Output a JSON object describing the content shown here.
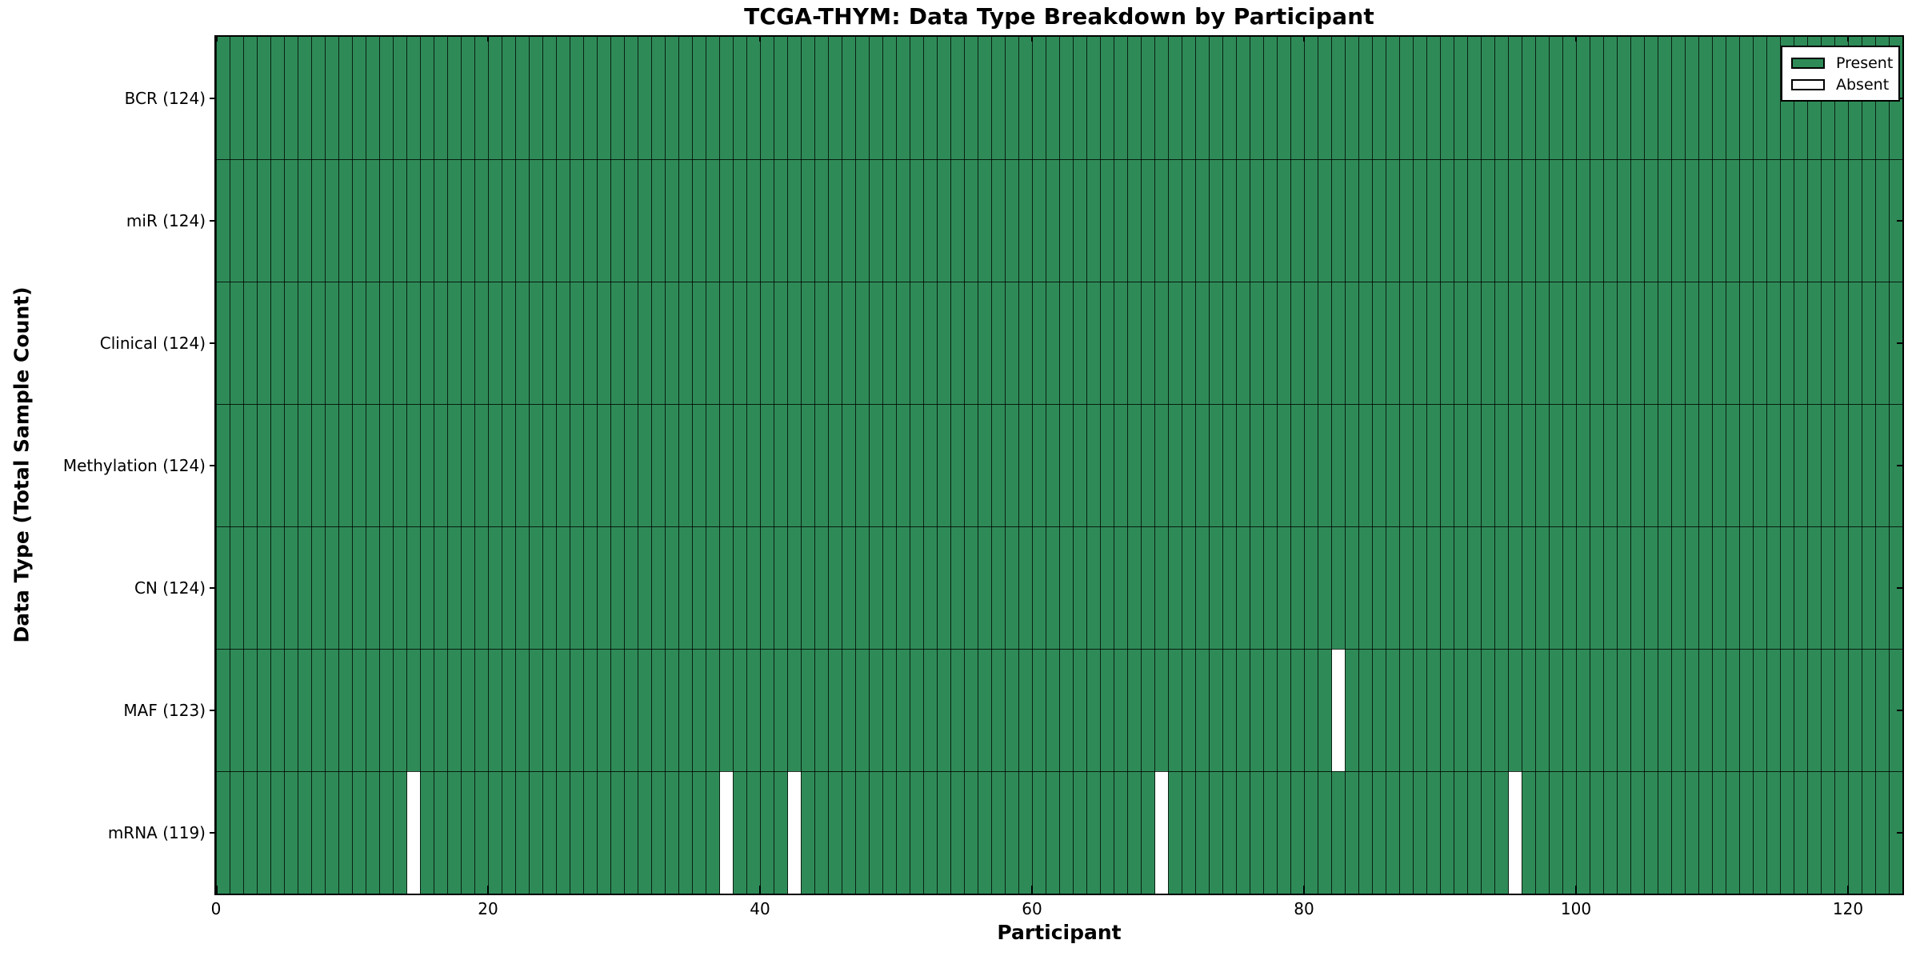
{
  "chart_data": {
    "type": "heatmap",
    "title": "TCGA-THYM: Data Type Breakdown by Participant",
    "xlabel": "Participant",
    "ylabel": "Data Type (Total Sample Count)",
    "xlim": [
      0,
      124
    ],
    "n_participants": 124,
    "x_ticks": [
      0,
      20,
      40,
      60,
      80,
      100,
      120
    ],
    "grid": "per-participant column separators, row dividers between data types",
    "legend_position": "upper right",
    "legend": [
      {
        "label": "Present",
        "color": "#2e8b57"
      },
      {
        "label": "Absent",
        "color": "#ffffff"
      }
    ],
    "colors": {
      "present_fill": "#2e8b57",
      "absent_fill": "#ffffff",
      "bar_edge": "#000000",
      "background": "#ffffff"
    },
    "rows": [
      {
        "label": "BCR (124)",
        "data_type": "BCR",
        "total_samples": 124,
        "present_count": 124,
        "absent_participant_indices": []
      },
      {
        "label": "miR (124)",
        "data_type": "miR",
        "total_samples": 124,
        "present_count": 124,
        "absent_participant_indices": []
      },
      {
        "label": "Clinical (124)",
        "data_type": "Clinical",
        "total_samples": 124,
        "present_count": 124,
        "absent_participant_indices": []
      },
      {
        "label": "Methylation (124)",
        "data_type": "Methylation",
        "total_samples": 124,
        "present_count": 124,
        "absent_participant_indices": []
      },
      {
        "label": "CN (124)",
        "data_type": "CN",
        "total_samples": 124,
        "present_count": 124,
        "absent_participant_indices": []
      },
      {
        "label": "MAF (123)",
        "data_type": "MAF",
        "total_samples": 123,
        "present_count": 123,
        "absent_participant_indices": [
          82
        ]
      },
      {
        "label": "mRNA (119)",
        "data_type": "mRNA",
        "total_samples": 119,
        "present_count": 119,
        "absent_participant_indices": [
          14,
          37,
          42,
          69,
          95
        ]
      }
    ]
  }
}
